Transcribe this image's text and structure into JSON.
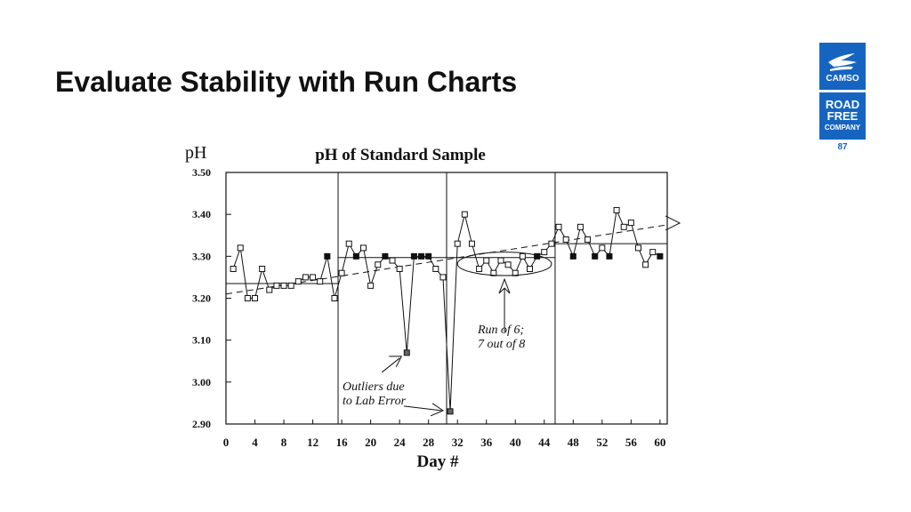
{
  "slide": {
    "title": "Evaluate Stability with Run Charts",
    "page_number": "87",
    "logo_top_text": "CAMSO",
    "logo_bottom_lines": [
      "ROAD",
      "FREE",
      "COMPANY"
    ]
  },
  "chart_data": {
    "type": "line",
    "title": "pH of Standard Sample",
    "ylabel": "pH",
    "xlabel": "Day #",
    "xlim": [
      0,
      61
    ],
    "ylim": [
      2.9,
      3.5
    ],
    "xticks": [
      0,
      4,
      8,
      12,
      16,
      20,
      24,
      28,
      32,
      36,
      40,
      44,
      48,
      52,
      56,
      60
    ],
    "yticks": [
      2.9,
      3.0,
      3.1,
      3.2,
      3.3,
      3.4,
      3.5
    ],
    "ytick_labels": [
      "2.90",
      "3.00",
      "3.10",
      "3.20",
      "3.30",
      "3.40",
      "3.50"
    ],
    "grid": false,
    "vertical_dividers": [
      15.5,
      30.5,
      45.5
    ],
    "series": [
      {
        "x": [
          1,
          2,
          3,
          4,
          5,
          6,
          7,
          8,
          9,
          10,
          11,
          12,
          13,
          14,
          15,
          16,
          17,
          18,
          19,
          20,
          21,
          22,
          23,
          24,
          25,
          26,
          27,
          28,
          29,
          30,
          31,
          32,
          33,
          34,
          35,
          36,
          37,
          38,
          39,
          40,
          41,
          42,
          43,
          44,
          45,
          46,
          47,
          48,
          49,
          50,
          51,
          52,
          53,
          54,
          55,
          56,
          57,
          58,
          59,
          60
        ],
        "y": [
          3.27,
          3.32,
          3.2,
          3.2,
          3.27,
          3.22,
          3.23,
          3.23,
          3.23,
          3.24,
          3.25,
          3.25,
          3.24,
          3.3,
          3.2,
          3.26,
          3.33,
          3.3,
          3.32,
          3.23,
          3.28,
          3.3,
          3.29,
          3.27,
          3.07,
          3.3,
          3.3,
          3.3,
          3.27,
          3.25,
          2.93,
          3.33,
          3.4,
          3.33,
          3.27,
          3.29,
          3.26,
          3.29,
          3.28,
          3.26,
          3.3,
          3.27,
          3.3,
          3.31,
          3.33,
          3.37,
          3.34,
          3.3,
          3.37,
          3.34,
          3.3,
          3.32,
          3.3,
          3.41,
          3.37,
          3.38,
          3.32,
          3.28,
          3.31,
          3.3
        ],
        "filled": [
          14,
          18,
          22,
          26,
          27,
          28,
          43,
          48,
          51,
          53,
          60
        ],
        "outliers": [
          25,
          31
        ]
      }
    ],
    "center_lines": [
      {
        "x_range": [
          0,
          15.5
        ],
        "y": 3.235
      },
      {
        "x_range": [
          15.5,
          45.5
        ],
        "y": 3.297
      },
      {
        "x_range": [
          45.5,
          61
        ],
        "y": 3.33
      }
    ],
    "trend_line": {
      "from": [
        0,
        3.21
      ],
      "to": [
        61,
        3.375
      ]
    },
    "run_ellipse": {
      "x_center": 38.5,
      "y_center": 3.282,
      "x_radius": 6.5,
      "y_radius": 0.028
    },
    "annotations": {
      "run_label_line1": "Run of 6;",
      "run_label_line2": "7 out of 8",
      "outlier_label_line1": "Outliers due",
      "outlier_label_line2": "to Lab Error"
    }
  }
}
